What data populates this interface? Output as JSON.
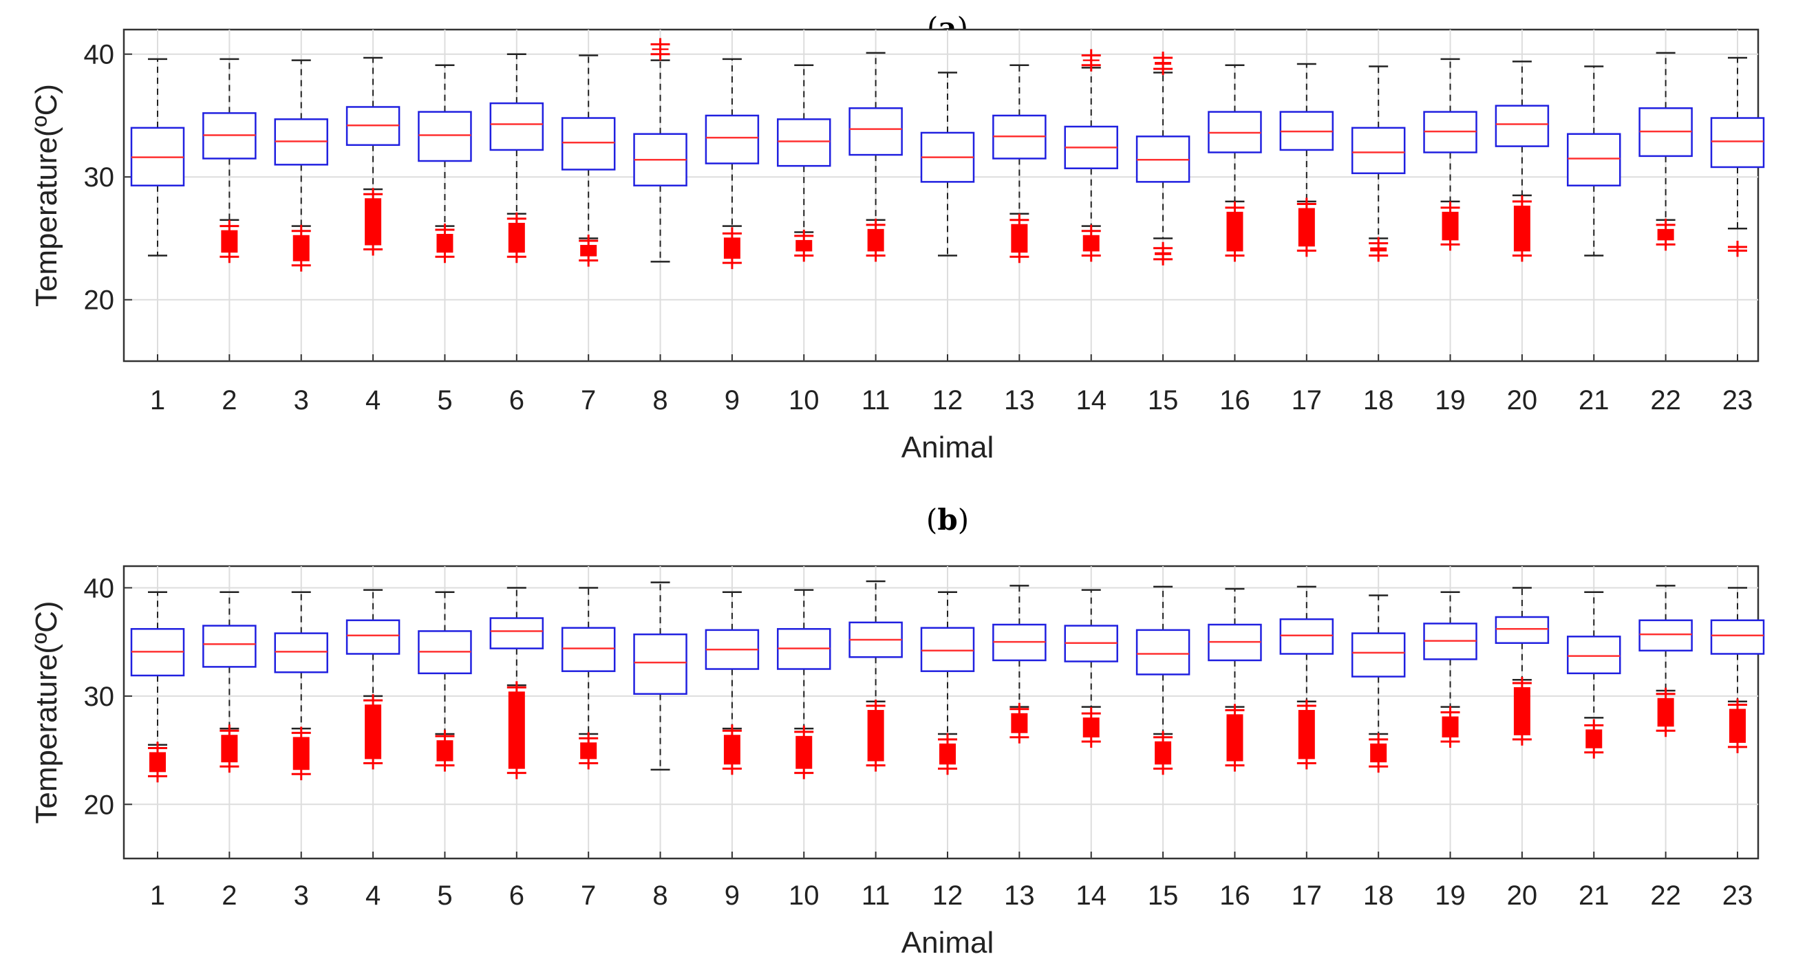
{
  "chart_data": [
    {
      "type": "box",
      "title": "(a)",
      "title_parts": [
        "(",
        "a",
        ")"
      ],
      "xlabel": "Animal",
      "ylabel": "Temperature(ºC)",
      "ylim": [
        15,
        42
      ],
      "yticks": [
        20,
        30,
        40
      ],
      "grid": true,
      "categories": [
        "1",
        "2",
        "3",
        "4",
        "5",
        "6",
        "7",
        "8",
        "9",
        "10",
        "11",
        "12",
        "13",
        "14",
        "15",
        "16",
        "17",
        "18",
        "19",
        "20",
        "21",
        "22",
        "23"
      ],
      "boxes": [
        {
          "q1": 29.3,
          "median": 31.6,
          "q3": 34.0,
          "whisker_low": 23.6,
          "whisker_high": 39.6,
          "outlier_high": [],
          "outlier_low": []
        },
        {
          "q1": 31.5,
          "median": 33.4,
          "q3": 35.2,
          "whisker_low": 26.5,
          "whisker_high": 39.6,
          "outlier_high": [],
          "outlier_low": [
            23.5,
            26.0
          ]
        },
        {
          "q1": 31.0,
          "median": 32.9,
          "q3": 34.7,
          "whisker_low": 26.0,
          "whisker_high": 39.5,
          "outlier_high": [],
          "outlier_low": [
            22.8,
            25.6
          ]
        },
        {
          "q1": 32.6,
          "median": 34.2,
          "q3": 35.7,
          "whisker_low": 29.0,
          "whisker_high": 39.7,
          "outlier_high": [],
          "outlier_low": [
            24.1,
            28.6
          ]
        },
        {
          "q1": 31.3,
          "median": 33.4,
          "q3": 35.3,
          "whisker_low": 26.0,
          "whisker_high": 39.1,
          "outlier_high": [],
          "outlier_low": [
            23.5,
            25.7
          ]
        },
        {
          "q1": 32.2,
          "median": 34.3,
          "q3": 36.0,
          "whisker_low": 27.0,
          "whisker_high": 40.0,
          "outlier_high": [],
          "outlier_low": [
            23.5,
            26.6
          ]
        },
        {
          "q1": 30.6,
          "median": 32.8,
          "q3": 34.8,
          "whisker_low": 25.0,
          "whisker_high": 39.9,
          "outlier_high": [],
          "outlier_low": [
            23.2,
            24.8
          ]
        },
        {
          "q1": 29.3,
          "median": 31.4,
          "q3": 33.5,
          "whisker_low": 23.1,
          "whisker_high": 39.5,
          "outlier_high": [
            40.0,
            40.8
          ],
          "outlier_low": []
        },
        {
          "q1": 31.1,
          "median": 33.2,
          "q3": 35.0,
          "whisker_low": 26.0,
          "whisker_high": 39.6,
          "outlier_high": [],
          "outlier_low": [
            23.0,
            25.4
          ]
        },
        {
          "q1": 30.9,
          "median": 32.9,
          "q3": 34.7,
          "whisker_low": 25.5,
          "whisker_high": 39.1,
          "outlier_high": [],
          "outlier_low": [
            23.6,
            25.2
          ]
        },
        {
          "q1": 31.8,
          "median": 33.9,
          "q3": 35.6,
          "whisker_low": 26.5,
          "whisker_high": 40.1,
          "outlier_high": [],
          "outlier_low": [
            23.6,
            26.1
          ]
        },
        {
          "q1": 29.6,
          "median": 31.6,
          "q3": 33.6,
          "whisker_low": 23.6,
          "whisker_high": 38.5,
          "outlier_high": [],
          "outlier_low": []
        },
        {
          "q1": 31.5,
          "median": 33.3,
          "q3": 35.0,
          "whisker_low": 27.0,
          "whisker_high": 39.1,
          "outlier_high": [],
          "outlier_low": [
            23.5,
            26.5
          ]
        },
        {
          "q1": 30.7,
          "median": 32.4,
          "q3": 34.1,
          "whisker_low": 26.0,
          "whisker_high": 38.9,
          "outlier_high": [
            39.1,
            39.9
          ],
          "outlier_low": [
            23.6,
            25.6
          ]
        },
        {
          "q1": 29.6,
          "median": 31.4,
          "q3": 33.3,
          "whisker_low": 25.0,
          "whisker_high": 38.5,
          "outlier_high": [
            38.8,
            39.7
          ],
          "outlier_low": [
            23.3,
            24.2
          ]
        },
        {
          "q1": 32.0,
          "median": 33.6,
          "q3": 35.3,
          "whisker_low": 28.0,
          "whisker_high": 39.1,
          "outlier_high": [],
          "outlier_low": [
            23.6,
            27.5
          ]
        },
        {
          "q1": 32.2,
          "median": 33.7,
          "q3": 35.3,
          "whisker_low": 28.0,
          "whisker_high": 39.2,
          "outlier_high": [],
          "outlier_low": [
            24.0,
            27.8
          ]
        },
        {
          "q1": 30.3,
          "median": 32.0,
          "q3": 34.0,
          "whisker_low": 25.0,
          "whisker_high": 39.0,
          "outlier_high": [],
          "outlier_low": [
            23.6,
            24.6
          ]
        },
        {
          "q1": 32.0,
          "median": 33.7,
          "q3": 35.3,
          "whisker_low": 28.0,
          "whisker_high": 39.6,
          "outlier_high": [],
          "outlier_low": [
            24.5,
            27.5
          ]
        },
        {
          "q1": 32.5,
          "median": 34.3,
          "q3": 35.8,
          "whisker_low": 28.5,
          "whisker_high": 39.4,
          "outlier_high": [],
          "outlier_low": [
            23.6,
            28.0
          ]
        },
        {
          "q1": 29.3,
          "median": 31.5,
          "q3": 33.5,
          "whisker_low": 23.6,
          "whisker_high": 39.0,
          "outlier_high": [],
          "outlier_low": []
        },
        {
          "q1": 31.7,
          "median": 33.7,
          "q3": 35.6,
          "whisker_low": 26.5,
          "whisker_high": 40.1,
          "outlier_high": [],
          "outlier_low": [
            24.5,
            26.1
          ]
        },
        {
          "q1": 30.8,
          "median": 32.9,
          "q3": 34.8,
          "whisker_low": 25.8,
          "whisker_high": 39.7,
          "outlier_high": [],
          "outlier_low": [
            24.0,
            24.3
          ]
        }
      ]
    },
    {
      "type": "box",
      "title": "(b)",
      "title_parts": [
        "(",
        "b",
        ")"
      ],
      "xlabel": "Animal",
      "ylabel": "Temperature(ºC)",
      "ylim": [
        15,
        42
      ],
      "yticks": [
        20,
        30,
        40
      ],
      "grid": true,
      "categories": [
        "1",
        "2",
        "3",
        "4",
        "5",
        "6",
        "7",
        "8",
        "9",
        "10",
        "11",
        "12",
        "13",
        "14",
        "15",
        "16",
        "17",
        "18",
        "19",
        "20",
        "21",
        "22",
        "23"
      ],
      "boxes": [
        {
          "q1": 31.9,
          "median": 34.1,
          "q3": 36.2,
          "whisker_low": 25.5,
          "whisker_high": 39.6,
          "outlier_high": [],
          "outlier_low": [
            22.6,
            25.2
          ]
        },
        {
          "q1": 32.7,
          "median": 34.8,
          "q3": 36.5,
          "whisker_low": 27.0,
          "whisker_high": 39.6,
          "outlier_high": [],
          "outlier_low": [
            23.5,
            26.8
          ]
        },
        {
          "q1": 32.2,
          "median": 34.1,
          "q3": 35.8,
          "whisker_low": 27.0,
          "whisker_high": 39.6,
          "outlier_high": [],
          "outlier_low": [
            22.8,
            26.6
          ]
        },
        {
          "q1": 33.9,
          "median": 35.6,
          "q3": 37.0,
          "whisker_low": 30.0,
          "whisker_high": 39.8,
          "outlier_high": [],
          "outlier_low": [
            23.8,
            29.6
          ]
        },
        {
          "q1": 32.1,
          "median": 34.1,
          "q3": 36.0,
          "whisker_low": 26.5,
          "whisker_high": 39.6,
          "outlier_high": [],
          "outlier_low": [
            23.6,
            26.3
          ]
        },
        {
          "q1": 34.4,
          "median": 36.0,
          "q3": 37.2,
          "whisker_low": 31.0,
          "whisker_high": 40.0,
          "outlier_high": [],
          "outlier_low": [
            22.9,
            30.8
          ]
        },
        {
          "q1": 32.3,
          "median": 34.4,
          "q3": 36.3,
          "whisker_low": 26.5,
          "whisker_high": 40.0,
          "outlier_high": [],
          "outlier_low": [
            23.8,
            26.1
          ]
        },
        {
          "q1": 30.2,
          "median": 33.1,
          "q3": 35.7,
          "whisker_low": 23.2,
          "whisker_high": 40.5,
          "outlier_high": [],
          "outlier_low": []
        },
        {
          "q1": 32.5,
          "median": 34.3,
          "q3": 36.1,
          "whisker_low": 27.0,
          "whisker_high": 39.6,
          "outlier_high": [],
          "outlier_low": [
            23.3,
            26.8
          ]
        },
        {
          "q1": 32.5,
          "median": 34.4,
          "q3": 36.2,
          "whisker_low": 27.0,
          "whisker_high": 39.8,
          "outlier_high": [],
          "outlier_low": [
            22.9,
            26.7
          ]
        },
        {
          "q1": 33.6,
          "median": 35.2,
          "q3": 36.8,
          "whisker_low": 29.5,
          "whisker_high": 40.6,
          "outlier_high": [],
          "outlier_low": [
            23.6,
            29.1
          ]
        },
        {
          "q1": 32.3,
          "median": 34.2,
          "q3": 36.3,
          "whisker_low": 26.5,
          "whisker_high": 39.6,
          "outlier_high": [],
          "outlier_low": [
            23.3,
            26.0
          ]
        },
        {
          "q1": 33.3,
          "median": 35.0,
          "q3": 36.6,
          "whisker_low": 29.0,
          "whisker_high": 40.2,
          "outlier_high": [],
          "outlier_low": [
            26.2,
            28.8
          ]
        },
        {
          "q1": 33.2,
          "median": 34.9,
          "q3": 36.5,
          "whisker_low": 29.0,
          "whisker_high": 39.8,
          "outlier_high": [],
          "outlier_low": [
            25.8,
            28.4
          ]
        },
        {
          "q1": 32.0,
          "median": 33.9,
          "q3": 36.1,
          "whisker_low": 26.5,
          "whisker_high": 40.1,
          "outlier_high": [],
          "outlier_low": [
            23.3,
            26.2
          ]
        },
        {
          "q1": 33.3,
          "median": 35.0,
          "q3": 36.6,
          "whisker_low": 29.0,
          "whisker_high": 39.9,
          "outlier_high": [],
          "outlier_low": [
            23.6,
            28.7
          ]
        },
        {
          "q1": 33.9,
          "median": 35.6,
          "q3": 37.1,
          "whisker_low": 29.5,
          "whisker_high": 40.1,
          "outlier_high": [],
          "outlier_low": [
            23.8,
            29.1
          ]
        },
        {
          "q1": 31.8,
          "median": 34.0,
          "q3": 35.8,
          "whisker_low": 26.5,
          "whisker_high": 39.3,
          "outlier_high": [],
          "outlier_low": [
            23.5,
            26.0
          ]
        },
        {
          "q1": 33.4,
          "median": 35.1,
          "q3": 36.7,
          "whisker_low": 29.0,
          "whisker_high": 39.6,
          "outlier_high": [],
          "outlier_low": [
            25.8,
            28.5
          ]
        },
        {
          "q1": 34.9,
          "median": 36.2,
          "q3": 37.3,
          "whisker_low": 31.5,
          "whisker_high": 40.0,
          "outlier_high": [],
          "outlier_low": [
            26.0,
            31.2
          ]
        },
        {
          "q1": 32.1,
          "median": 33.7,
          "q3": 35.5,
          "whisker_low": 28.0,
          "whisker_high": 39.6,
          "outlier_high": [],
          "outlier_low": [
            24.8,
            27.3
          ]
        },
        {
          "q1": 34.2,
          "median": 35.7,
          "q3": 37.0,
          "whisker_low": 30.5,
          "whisker_high": 40.2,
          "outlier_high": [],
          "outlier_low": [
            26.8,
            30.2
          ]
        },
        {
          "q1": 33.9,
          "median": 35.6,
          "q3": 37.0,
          "whisker_low": 29.5,
          "whisker_high": 40.0,
          "outlier_high": [],
          "outlier_low": [
            25.3,
            29.2
          ]
        }
      ]
    }
  ],
  "colors": {
    "box": "#2020e0",
    "median": "#ff3030",
    "whisker": "#222222",
    "outlier": "#ff0000",
    "grid": "#dddddd",
    "axis": "#333333"
  }
}
